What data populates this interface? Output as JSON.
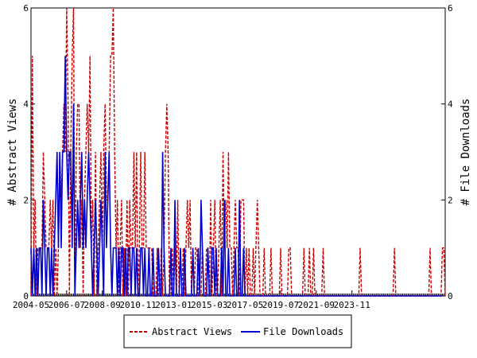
{
  "chart_data": {
    "type": "line",
    "x_unit": "month",
    "x_start": "2004-05",
    "x_ticks": [
      "2004-05",
      "2006-07",
      "2008-09",
      "2010-11",
      "2013-01",
      "2015-03",
      "2017-05",
      "2019-07",
      "2021-09",
      "2023-11"
    ],
    "ylabel_left": "# Abstract Views",
    "ylabel_right": "# File Downloads",
    "ylim": [
      0,
      6
    ],
    "yticks": [
      0,
      2,
      4,
      6
    ],
    "legend_position": "bottom-center",
    "series": [
      {
        "name": "Abstract Views",
        "color": "#cc0000",
        "style": "dashed",
        "values": [
          0,
          5,
          1,
          2,
          0,
          1,
          1,
          1,
          1,
          3,
          2,
          1,
          1,
          1,
          2,
          1,
          2,
          0,
          1,
          0,
          1,
          3,
          2,
          3,
          4,
          3,
          6,
          4,
          0,
          3,
          5,
          6,
          0,
          3,
          4,
          4,
          1,
          2,
          0,
          2,
          3,
          4,
          3,
          5,
          1,
          2,
          0,
          3,
          0,
          1,
          2,
          3,
          1,
          3,
          4,
          2,
          2,
          3,
          5,
          5,
          6,
          3,
          1,
          2,
          0,
          1,
          2,
          0,
          1,
          0,
          2,
          0,
          2,
          1,
          1,
          3,
          1,
          3,
          0,
          1,
          3,
          1,
          1,
          3,
          1,
          1,
          1,
          1,
          1,
          0,
          0,
          0,
          1,
          0,
          0,
          1,
          0,
          1,
          3,
          4,
          3,
          0,
          0,
          1,
          0,
          1,
          0,
          2,
          0,
          0,
          0,
          1,
          0,
          1,
          2,
          1,
          2,
          0,
          1,
          0,
          1,
          1,
          0,
          0,
          0,
          1,
          0,
          0,
          1,
          1,
          0,
          2,
          0,
          1,
          2,
          0,
          0,
          1,
          2,
          0,
          3,
          1,
          2,
          1,
          3,
          1,
          1,
          0,
          1,
          2,
          1,
          1,
          0,
          2,
          2,
          2,
          0,
          1,
          0,
          1,
          0,
          0,
          1,
          0,
          1,
          2,
          1,
          0,
          0,
          0,
          1,
          0,
          0,
          0,
          0,
          1,
          0,
          0,
          0,
          0,
          0,
          0,
          1,
          0,
          0,
          0,
          0,
          0,
          1,
          1,
          0,
          0,
          0,
          0,
          0,
          0,
          0,
          0,
          0,
          1,
          0,
          0,
          0,
          1,
          0,
          0,
          1,
          0,
          0,
          0,
          0,
          0,
          0,
          1,
          0,
          0,
          0,
          0,
          0,
          0,
          0,
          0,
          0,
          0,
          0,
          0,
          0,
          0,
          0,
          0,
          0,
          0,
          0,
          0,
          0,
          0,
          0,
          0,
          0,
          0,
          1,
          0,
          0,
          0,
          0,
          0,
          0,
          0,
          0,
          0,
          0,
          0,
          0,
          0,
          0,
          0,
          0,
          0,
          0,
          0,
          0,
          0,
          0,
          0,
          0,
          1,
          0,
          0,
          0,
          0,
          0,
          0,
          0,
          0,
          0,
          0,
          0,
          0,
          0,
          0,
          0,
          0,
          0,
          0,
          0,
          0,
          0,
          0,
          0,
          0,
          0,
          1,
          0,
          0,
          0,
          0,
          0,
          0,
          0,
          0,
          1,
          1,
          0
        ]
      },
      {
        "name": "File Downloads",
        "color": "#0000cc",
        "style": "solid",
        "values": [
          1,
          0,
          1,
          0,
          1,
          0,
          1,
          1,
          0,
          2,
          1,
          0,
          1,
          1,
          0,
          1,
          0,
          1,
          2,
          3,
          1,
          3,
          1,
          3,
          3,
          5,
          3,
          2,
          3,
          3,
          1,
          4,
          0,
          1,
          2,
          1,
          2,
          3,
          1,
          2,
          1,
          2,
          3,
          2,
          1,
          0,
          1,
          2,
          1,
          0,
          1,
          2,
          1,
          0,
          3,
          1,
          2,
          3,
          1,
          0,
          1,
          1,
          1,
          0,
          1,
          0,
          1,
          1,
          0,
          1,
          0,
          1,
          1,
          0,
          1,
          1,
          0,
          1,
          0,
          0,
          1,
          1,
          0,
          1,
          0,
          0,
          1,
          0,
          0,
          1,
          0,
          0,
          0,
          1,
          0,
          0,
          3,
          1,
          0,
          0,
          0,
          0,
          1,
          0,
          0,
          2,
          0,
          0,
          0,
          1,
          0,
          0,
          1,
          0,
          0,
          0,
          0,
          0,
          1,
          0,
          0,
          0,
          1,
          0,
          2,
          1,
          0,
          0,
          0,
          1,
          0,
          0,
          1,
          1,
          0,
          1,
          0,
          0,
          0,
          1,
          0,
          2,
          0,
          0,
          1,
          0,
          0,
          0,
          0,
          1,
          0,
          0,
          2,
          0,
          0,
          1,
          0,
          0,
          0,
          0,
          0,
          0,
          0,
          0,
          0,
          0,
          0,
          0,
          0,
          0,
          0,
          0,
          0,
          0,
          0,
          0,
          0,
          0,
          0,
          0,
          0,
          0,
          0,
          0,
          0,
          0,
          0,
          0,
          0,
          0,
          0,
          0,
          0,
          0,
          0,
          0,
          0,
          0,
          0,
          0,
          0,
          0,
          0,
          0,
          0,
          0,
          0,
          0,
          0,
          0,
          0,
          0,
          0,
          0,
          0,
          0,
          0,
          0,
          0,
          0,
          0,
          0,
          0,
          0,
          0,
          0,
          0,
          0,
          0,
          0,
          0,
          0,
          0,
          0,
          0,
          0,
          0,
          0,
          0,
          0,
          0,
          0,
          0,
          0,
          0,
          0,
          0,
          0,
          0,
          0,
          0,
          0,
          0,
          0,
          0,
          0,
          0,
          0,
          0,
          0,
          0,
          0,
          0,
          0,
          0,
          0,
          0,
          0,
          0,
          0,
          0,
          0,
          0,
          0,
          0,
          0,
          0,
          0,
          0,
          0,
          0,
          0,
          0,
          0,
          0,
          0,
          0,
          0,
          0,
          0,
          0,
          0,
          0,
          0,
          0,
          0,
          0,
          0,
          0,
          0,
          0
        ]
      }
    ]
  }
}
